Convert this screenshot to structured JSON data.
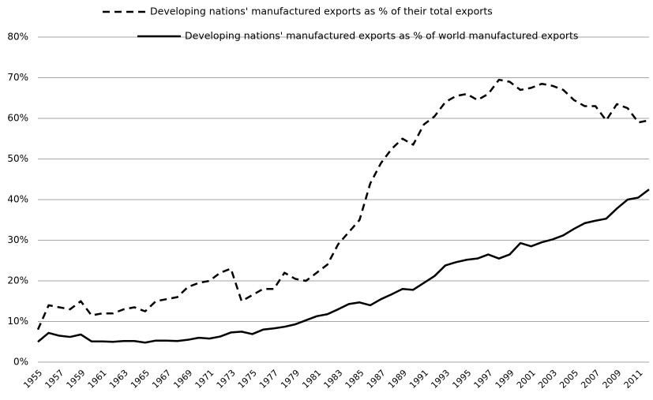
{
  "chart_data": {
    "type": "line",
    "x": [
      1955,
      1956,
      1957,
      1958,
      1959,
      1960,
      1961,
      1962,
      1963,
      1964,
      1965,
      1966,
      1967,
      1968,
      1969,
      1970,
      1971,
      1972,
      1973,
      1974,
      1975,
      1976,
      1977,
      1978,
      1979,
      1980,
      1981,
      1982,
      1983,
      1984,
      1985,
      1986,
      1987,
      1988,
      1989,
      1990,
      1991,
      1992,
      1993,
      1994,
      1995,
      1996,
      1997,
      1998,
      1999,
      2000,
      2001,
      2002,
      2003,
      2004,
      2005,
      2006,
      2007,
      2008,
      2009,
      2010,
      2011,
      2012
    ],
    "series": [
      {
        "name": "Developing nations' manufactured exports as % of their total exports",
        "color": "#000000",
        "dash": true,
        "values": [
          8,
          14,
          13.5,
          13,
          15,
          11.5,
          12,
          12,
          13,
          13.5,
          12.5,
          15,
          15.5,
          16,
          18.5,
          19.5,
          20,
          22,
          23,
          15,
          16.5,
          18,
          18,
          22,
          20.5,
          20,
          22,
          24,
          29,
          32,
          35,
          44,
          49,
          52.5,
          55,
          53.5,
          58.5,
          60.5,
          64,
          65.5,
          66,
          64.5,
          66,
          69.5,
          69,
          67,
          67.5,
          68.5,
          68,
          67,
          64.5,
          63,
          63,
          59.5,
          63.5,
          62.5,
          59,
          59.5
        ]
      },
      {
        "name": "Developing nations' manufactured exports as % of world manufactured exports",
        "color": "#000000",
        "dash": false,
        "values": [
          5,
          7.2,
          6.5,
          6.2,
          6.8,
          5.1,
          5.1,
          5,
          5.2,
          5.2,
          4.8,
          5.3,
          5.3,
          5.2,
          5.5,
          6,
          5.8,
          6.3,
          7.3,
          7.5,
          6.9,
          8,
          8.3,
          8.7,
          9.3,
          10.3,
          11.3,
          11.8,
          13,
          14.3,
          14.7,
          14,
          15.5,
          16.7,
          18,
          17.8,
          19.5,
          21.2,
          23.8,
          24.6,
          25.2,
          25.5,
          26.5,
          25.5,
          26.5,
          29.3,
          28.5,
          29.5,
          30.2,
          31.2,
          32.8,
          34.2,
          34.8,
          35.3,
          37.8,
          40,
          40.5,
          42.5
        ]
      }
    ],
    "xlim": [
      1955,
      2012
    ],
    "xticks": [
      1955,
      1957,
      1959,
      1961,
      1963,
      1965,
      1967,
      1969,
      1971,
      1973,
      1975,
      1977,
      1979,
      1981,
      1983,
      1985,
      1987,
      1989,
      1991,
      1993,
      1995,
      1997,
      1999,
      2001,
      2003,
      2005,
      2007,
      2009,
      2011
    ],
    "ylim": [
      0,
      80
    ],
    "yticks": [
      {
        "value": 0,
        "label": "0%"
      },
      {
        "value": 10,
        "label": "10%"
      },
      {
        "value": 20,
        "label": "20%"
      },
      {
        "value": 30,
        "label": "30%"
      },
      {
        "value": 40,
        "label": "40%"
      },
      {
        "value": 50,
        "label": "50%"
      },
      {
        "value": 60,
        "label": "60%"
      },
      {
        "value": 70,
        "label": "70%"
      },
      {
        "value": 80,
        "label": "80%"
      }
    ],
    "grid": true
  }
}
